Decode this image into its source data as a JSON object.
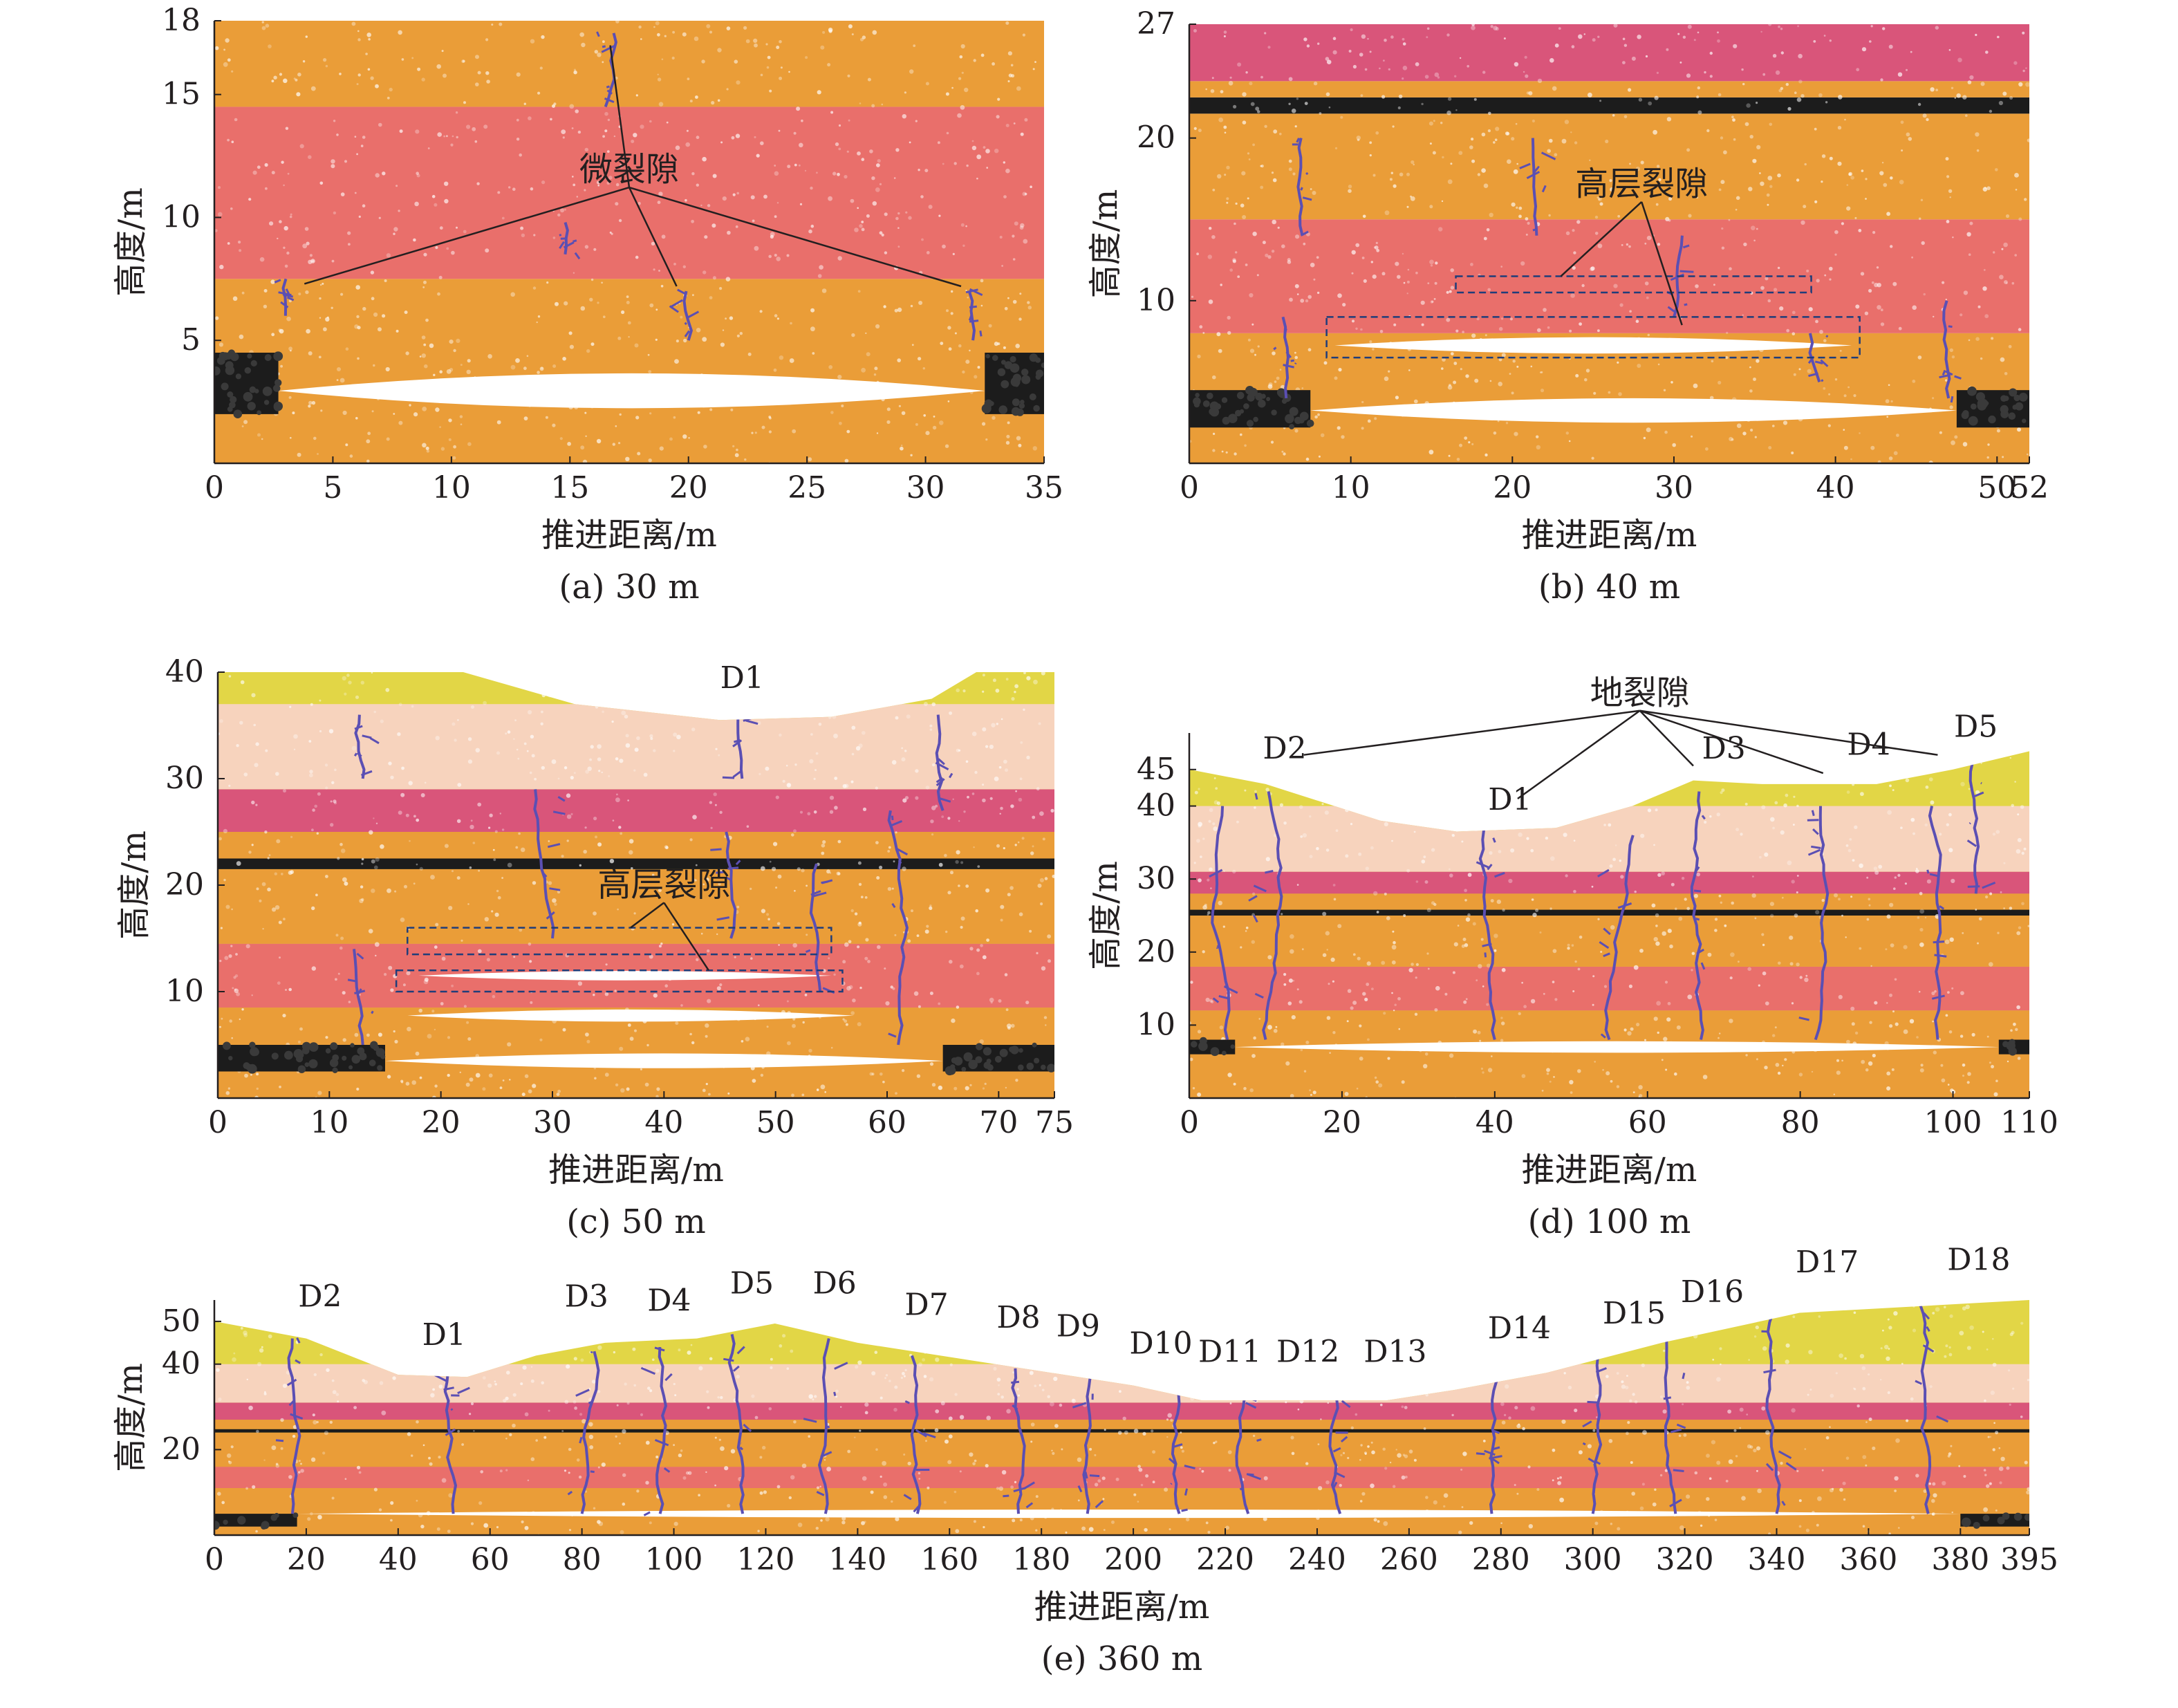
{
  "colors": {
    "orange": "#ea9d38",
    "red": "#e96f6b",
    "magenta": "#d9557a",
    "pink": "#f7d3bd",
    "yellow": "#e2d646",
    "coal": "#1c1c1c",
    "void": "#ffffff",
    "crack": "#5b4fb3",
    "text": "#231f20"
  },
  "chart_data": [
    {
      "id": "a",
      "type": "scatter",
      "title": "(a) 30 m",
      "xlabel": "推进距离/m",
      "ylabel": "高度/m",
      "xlim": [
        0,
        35
      ],
      "ylim": [
        0,
        18
      ],
      "xticks": [
        "0",
        "5",
        "10",
        "15",
        "20",
        "25",
        "30",
        "35"
      ],
      "yticks": [
        "5",
        "10",
        "15",
        "18"
      ],
      "strata": [
        {
          "name": "orange",
          "from": 0,
          "to": 7.5
        },
        {
          "name": "red",
          "from": 7.5,
          "to": 14.5
        },
        {
          "name": "orange",
          "from": 14.5,
          "to": 18
        }
      ],
      "coal": [
        {
          "x0": 0,
          "x1": 2.7,
          "y0": 2,
          "y1": 4.5
        },
        {
          "x0": 32.5,
          "x1": 35,
          "y0": 2,
          "y1": 4.5
        }
      ],
      "voids": [
        {
          "x0": 2.7,
          "x1": 32.5,
          "y0": 1.7,
          "y1": 4.2
        }
      ],
      "cracks": [
        {
          "x": 3,
          "y0": 6,
          "y1": 7.5
        },
        {
          "x": 14.8,
          "y0": 8.5,
          "y1": 9.8
        },
        {
          "x": 16.5,
          "y0": 14.5,
          "y1": 17.5
        },
        {
          "x": 20,
          "y0": 5,
          "y1": 7
        },
        {
          "x": 32,
          "y0": 5,
          "y1": 7
        }
      ],
      "annotations": [
        {
          "text": "微裂隙",
          "x": 17.5,
          "y": 11.5,
          "pointers": [
            [
              3.8,
              7.3
            ],
            [
              16.7,
              17
            ],
            [
              19.5,
              7.2
            ],
            [
              31.5,
              7.2
            ]
          ]
        }
      ]
    },
    {
      "id": "b",
      "type": "scatter",
      "title": "(b) 40 m",
      "xlabel": "推进距离/m",
      "ylabel": "高度/m",
      "xlim": [
        0,
        52
      ],
      "ylim": [
        0,
        27
      ],
      "xticks": [
        "0",
        "10",
        "20",
        "30",
        "40",
        "50",
        "52"
      ],
      "yticks": [
        "10",
        "20",
        "27"
      ],
      "strata": [
        {
          "name": "orange",
          "from": 0,
          "to": 8
        },
        {
          "name": "red",
          "from": 8,
          "to": 15
        },
        {
          "name": "orange",
          "from": 15,
          "to": 21.5
        },
        {
          "name": "coal",
          "from": 21.5,
          "to": 22.5
        },
        {
          "name": "orange",
          "from": 22.5,
          "to": 23.5
        },
        {
          "name": "magenta",
          "from": 23.5,
          "to": 27
        }
      ],
      "coal": [
        {
          "x0": 0,
          "x1": 7.5,
          "y0": 2.2,
          "y1": 4.5
        },
        {
          "x0": 47.5,
          "x1": 52,
          "y0": 2.2,
          "y1": 4.5
        }
      ],
      "voids": [
        {
          "x0": 7.5,
          "x1": 47.5,
          "y0": 2,
          "y1": 4.5
        },
        {
          "x0": 9,
          "x1": 41,
          "y0": 6.5,
          "y1": 8
        }
      ],
      "cracks": [
        {
          "x": 6,
          "y0": 4,
          "y1": 9
        },
        {
          "x": 7,
          "y0": 14,
          "y1": 20
        },
        {
          "x": 21.5,
          "y0": 14,
          "y1": 20
        },
        {
          "x": 30,
          "y0": 9,
          "y1": 14
        },
        {
          "x": 39,
          "y0": 5,
          "y1": 8
        },
        {
          "x": 47,
          "y0": 4,
          "y1": 10
        }
      ],
      "boxes": [
        {
          "x0": 8.5,
          "x1": 41.5,
          "y0": 6.5,
          "y1": 9
        },
        {
          "x0": 16.5,
          "x1": 38.5,
          "y0": 10.5,
          "y1": 11.5
        }
      ],
      "annotations": [
        {
          "text": "高层裂隙",
          "x": 28,
          "y": 16.5,
          "pointers": [
            [
              23,
              11.5
            ],
            [
              30.5,
              8.5
            ]
          ]
        }
      ]
    },
    {
      "id": "c",
      "type": "scatter",
      "title": "(c) 50 m",
      "xlabel": "推进距离/m",
      "ylabel": "高度/m",
      "xlim": [
        0,
        75
      ],
      "ylim": [
        0,
        40
      ],
      "xticks": [
        "0",
        "10",
        "20",
        "30",
        "40",
        "50",
        "60",
        "70",
        "75"
      ],
      "yticks": [
        "10",
        "20",
        "30",
        "40"
      ],
      "strata": [
        {
          "name": "orange",
          "from": 0,
          "to": 8.5
        },
        {
          "name": "red",
          "from": 8.5,
          "to": 14.5
        },
        {
          "name": "orange",
          "from": 14.5,
          "to": 21.5
        },
        {
          "name": "coal",
          "from": 21.5,
          "to": 22.5
        },
        {
          "name": "orange",
          "from": 22.5,
          "to": 25
        },
        {
          "name": "magenta",
          "from": 25,
          "to": 29
        },
        {
          "name": "pink",
          "from": 29,
          "to": 37
        }
      ],
      "surface": [
        [
          0,
          40
        ],
        [
          22,
          40
        ],
        [
          32,
          37
        ],
        [
          45,
          35.5
        ],
        [
          55,
          35.8
        ],
        [
          64,
          37.5
        ],
        [
          68,
          40
        ],
        [
          75,
          40
        ]
      ],
      "coal": [
        {
          "x0": 0,
          "x1": 15,
          "y0": 2.5,
          "y1": 5
        },
        {
          "x0": 65,
          "x1": 75,
          "y0": 2.5,
          "y1": 5
        }
      ],
      "voids": [
        {
          "x0": 15,
          "x1": 65,
          "y0": 2.5,
          "y1": 4.5
        },
        {
          "x0": 17,
          "x1": 57,
          "y0": 7,
          "y1": 8.5
        },
        {
          "x0": 18,
          "x1": 55,
          "y0": 11,
          "y1": 12
        }
      ],
      "cracks": [
        {
          "x": 13,
          "y0": 5,
          "y1": 14
        },
        {
          "x": 13,
          "y0": 30,
          "y1": 36
        },
        {
          "x": 30,
          "y0": 15,
          "y1": 29
        },
        {
          "x": 46,
          "y0": 15,
          "y1": 25
        },
        {
          "x": 47,
          "y0": 30,
          "y1": 36
        },
        {
          "x": 54,
          "y0": 10,
          "y1": 22
        },
        {
          "x": 61,
          "y0": 5,
          "y1": 27
        },
        {
          "x": 65,
          "y0": 27,
          "y1": 36
        }
      ],
      "boxes": [
        {
          "x0": 16,
          "x1": 56,
          "y0": 10,
          "y1": 12
        },
        {
          "x0": 17,
          "x1": 55,
          "y0": 13.5,
          "y1": 16
        }
      ],
      "annotations": [
        {
          "text": "D1",
          "x": 47,
          "y": 38.5,
          "pointers": []
        },
        {
          "text": "高层裂隙",
          "x": 40,
          "y": 19,
          "pointers": [
            [
              37,
              16
            ],
            [
              44,
              12
            ]
          ]
        }
      ]
    },
    {
      "id": "d",
      "type": "scatter",
      "title": "(d) 100 m",
      "xlabel": "推进距离/m",
      "ylabel": "高度/m",
      "xlim": [
        0,
        110
      ],
      "ylim": [
        0,
        50
      ],
      "xticks": [
        "0",
        "20",
        "40",
        "60",
        "80",
        "100",
        "110"
      ],
      "yticks": [
        "10",
        "20",
        "30",
        "40",
        "45"
      ],
      "strata": [
        {
          "name": "orange",
          "from": 0,
          "to": 12
        },
        {
          "name": "red",
          "from": 12,
          "to": 18
        },
        {
          "name": "orange",
          "from": 18,
          "to": 25
        },
        {
          "name": "coal",
          "from": 25,
          "to": 25.8
        },
        {
          "name": "orange",
          "from": 25.8,
          "to": 28
        },
        {
          "name": "magenta",
          "from": 28,
          "to": 31
        },
        {
          "name": "pink",
          "from": 31,
          "to": 40
        }
      ],
      "surface": [
        [
          0,
          45
        ],
        [
          10,
          43
        ],
        [
          25,
          38
        ],
        [
          35,
          36.5
        ],
        [
          48,
          37
        ],
        [
          58,
          40
        ],
        [
          66,
          43.5
        ],
        [
          75,
          43
        ],
        [
          90,
          43
        ],
        [
          100,
          45
        ],
        [
          110,
          47.5
        ]
      ],
      "coal": [
        {
          "x0": 0,
          "x1": 6,
          "y0": 6,
          "y1": 8
        },
        {
          "x0": 106,
          "x1": 110,
          "y0": 6,
          "y1": 8
        }
      ],
      "voids": [
        {
          "x0": 6,
          "x1": 106,
          "y0": 6,
          "y1": 8
        }
      ],
      "cracks": [
        {
          "x": 5,
          "y0": 8,
          "y1": 40
        },
        {
          "x": 10,
          "y0": 8,
          "y1": 42
        },
        {
          "x": 40,
          "y0": 8,
          "y1": 38
        },
        {
          "x": 55,
          "y0": 8,
          "y1": 36
        },
        {
          "x": 67,
          "y0": 8,
          "y1": 42
        },
        {
          "x": 82,
          "y0": 8,
          "y1": 40
        },
        {
          "x": 98,
          "y0": 8,
          "y1": 40
        },
        {
          "x": 103,
          "y0": 28,
          "y1": 46
        }
      ],
      "annotations": [
        {
          "text": "地裂隙",
          "x": 59,
          "y": 54,
          "pointers": [
            [
              15,
              47
            ],
            [
              43,
              41
            ],
            [
              66,
              45.5
            ],
            [
              83,
              44.5
            ],
            [
              98,
              47
            ]
          ]
        },
        {
          "text": "D2",
          "x": 12.5,
          "y": 46.5,
          "pointers": []
        },
        {
          "text": "D1",
          "x": 42,
          "y": 39.5,
          "pointers": []
        },
        {
          "text": "D3",
          "x": 70,
          "y": 46.5,
          "pointers": []
        },
        {
          "text": "D4",
          "x": 89,
          "y": 47,
          "pointers": []
        },
        {
          "text": "D5",
          "x": 103,
          "y": 49.5,
          "pointers": []
        }
      ]
    },
    {
      "id": "e",
      "type": "scatter",
      "title": "(e) 360 m",
      "xlabel": "推进距离/m",
      "ylabel": "高度/m",
      "xlim": [
        0,
        395
      ],
      "ylim": [
        0,
        55
      ],
      "xticks": [
        "0",
        "20",
        "40",
        "60",
        "80",
        "100",
        "120",
        "140",
        "160",
        "180",
        "200",
        "220",
        "240",
        "260",
        "280",
        "300",
        "320",
        "340",
        "360",
        "380",
        "395"
      ],
      "yticks": [
        "20",
        "40",
        "50"
      ],
      "strata": [
        {
          "name": "orange",
          "from": 0,
          "to": 11
        },
        {
          "name": "red",
          "from": 11,
          "to": 16
        },
        {
          "name": "orange",
          "from": 16,
          "to": 24
        },
        {
          "name": "coal",
          "from": 24,
          "to": 24.8
        },
        {
          "name": "orange",
          "from": 24.8,
          "to": 27
        },
        {
          "name": "magenta",
          "from": 27,
          "to": 31
        },
        {
          "name": "pink",
          "from": 31,
          "to": 40
        }
      ],
      "surface": [
        [
          0,
          50
        ],
        [
          20,
          46
        ],
        [
          40,
          37.5
        ],
        [
          55,
          37
        ],
        [
          70,
          42
        ],
        [
          85,
          45
        ],
        [
          105,
          46
        ],
        [
          122,
          49.5
        ],
        [
          140,
          45
        ],
        [
          170,
          40
        ],
        [
          200,
          35
        ],
        [
          215,
          31.5
        ],
        [
          255,
          31.5
        ],
        [
          270,
          34
        ],
        [
          290,
          38
        ],
        [
          315,
          45
        ],
        [
          345,
          52
        ],
        [
          395,
          55
        ]
      ],
      "coal": [
        {
          "x0": 0,
          "x1": 18,
          "y0": 2,
          "y1": 5
        },
        {
          "x0": 380,
          "x1": 395,
          "y0": 2,
          "y1": 5
        }
      ],
      "voids": [
        {
          "x0": 18,
          "x1": 380,
          "y0": 4,
          "y1": 6
        }
      ],
      "cracks": [
        {
          "x": 17,
          "y0": 5,
          "y1": 46
        },
        {
          "x": 52,
          "y0": 5,
          "y1": 38
        },
        {
          "x": 80,
          "y0": 5,
          "y1": 43
        },
        {
          "x": 97,
          "y0": 5,
          "y1": 44
        },
        {
          "x": 115,
          "y0": 5,
          "y1": 47
        },
        {
          "x": 133,
          "y0": 5,
          "y1": 46
        },
        {
          "x": 153,
          "y0": 5,
          "y1": 42
        },
        {
          "x": 175,
          "y0": 5,
          "y1": 39
        },
        {
          "x": 190,
          "y0": 5,
          "y1": 37
        },
        {
          "x": 210,
          "y0": 5,
          "y1": 33
        },
        {
          "x": 225,
          "y0": 5,
          "y1": 32
        },
        {
          "x": 245,
          "y0": 5,
          "y1": 32
        },
        {
          "x": 278,
          "y0": 5,
          "y1": 36
        },
        {
          "x": 300,
          "y0": 5,
          "y1": 42
        },
        {
          "x": 318,
          "y0": 5,
          "y1": 46
        },
        {
          "x": 340,
          "y0": 5,
          "y1": 52
        },
        {
          "x": 373,
          "y0": 5,
          "y1": 54
        }
      ],
      "annotations": [
        {
          "text": "D2",
          "x": 23,
          "y": 53.5,
          "pointers": []
        },
        {
          "text": "D1",
          "x": 50,
          "y": 44.5,
          "pointers": []
        },
        {
          "text": "D3",
          "x": 81,
          "y": 53.5,
          "pointers": []
        },
        {
          "text": "D4",
          "x": 99,
          "y": 52.5,
          "pointers": []
        },
        {
          "text": "D5",
          "x": 117,
          "y": 56.5,
          "pointers": []
        },
        {
          "text": "D6",
          "x": 135,
          "y": 56.5,
          "pointers": []
        },
        {
          "text": "D7",
          "x": 155,
          "y": 51.5,
          "pointers": []
        },
        {
          "text": "D8",
          "x": 175,
          "y": 48.5,
          "pointers": []
        },
        {
          "text": "D9",
          "x": 188,
          "y": 46.5,
          "pointers": []
        },
        {
          "text": "D10",
          "x": 206,
          "y": 42.5,
          "pointers": []
        },
        {
          "text": "D11",
          "x": 221,
          "y": 40.5,
          "pointers": []
        },
        {
          "text": "D12",
          "x": 238,
          "y": 40.5,
          "pointers": []
        },
        {
          "text": "D13",
          "x": 257,
          "y": 40.5,
          "pointers": []
        },
        {
          "text": "D14",
          "x": 284,
          "y": 46,
          "pointers": []
        },
        {
          "text": "D15",
          "x": 309,
          "y": 49.5,
          "pointers": []
        },
        {
          "text": "D16",
          "x": 326,
          "y": 54.5,
          "pointers": []
        },
        {
          "text": "D17",
          "x": 351,
          "y": 61.5,
          "pointers": []
        },
        {
          "text": "D18",
          "x": 384,
          "y": 62,
          "pointers": []
        }
      ]
    }
  ]
}
